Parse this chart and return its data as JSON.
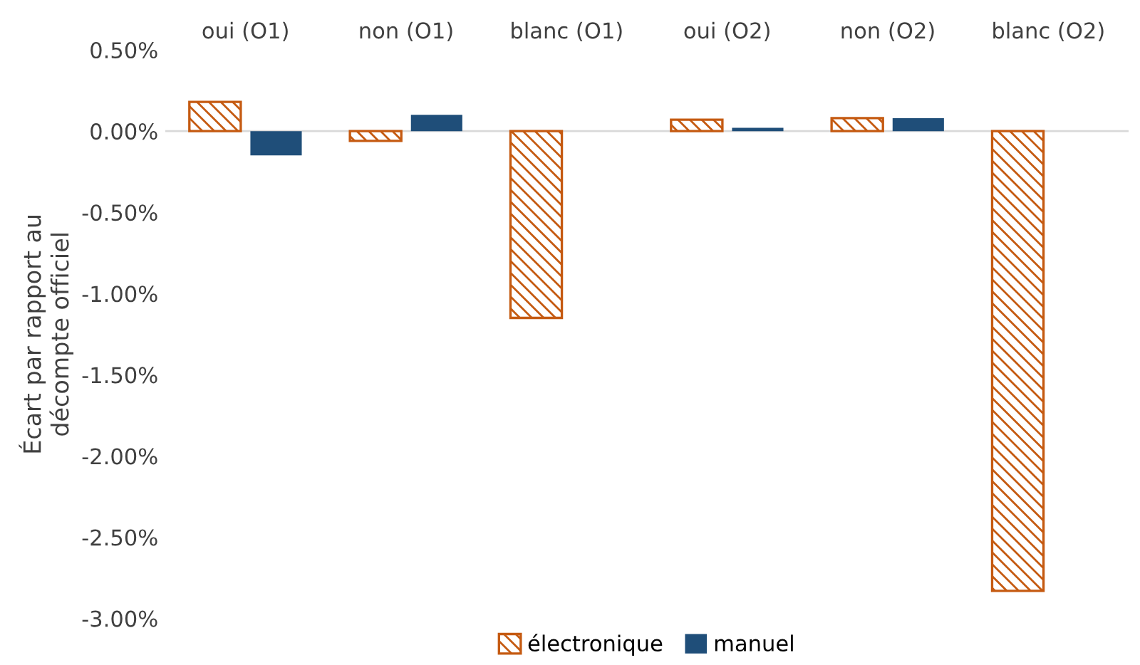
{
  "chart_data": {
    "type": "bar",
    "ylabel": "Écart par rapport au décompte officiel",
    "categories": [
      "oui (O1)",
      "non (O1)",
      "blanc (O1)",
      "oui (O2)",
      "non (O2)",
      "blanc (O2)"
    ],
    "series": [
      {
        "name": "électronique",
        "color": "#c55a11",
        "values": [
          0.18,
          -0.06,
          -1.15,
          0.07,
          0.08,
          -2.83
        ]
      },
      {
        "name": "manuel",
        "color": "#1f4e79",
        "values": [
          -0.15,
          0.1,
          0,
          0.02,
          0.08,
          0
        ]
      }
    ],
    "ylim": [
      -3.0,
      0.5
    ],
    "yticks": [
      {
        "value": 0.5,
        "label": "0.50%"
      },
      {
        "value": 0,
        "label": "0.00%"
      },
      {
        "value": -0.5,
        "label": "-0.50%"
      },
      {
        "value": -1.0,
        "label": "-1.00%"
      },
      {
        "value": -1.5,
        "label": "-1.50%"
      },
      {
        "value": -2.0,
        "label": "-2.00%"
      },
      {
        "value": -2.5,
        "label": "-2.50%"
      },
      {
        "value": -3.0,
        "label": "-3.00%"
      }
    ],
    "ref_lines": [
      {
        "axis": "y",
        "value": 0,
        "color": "#d9d9d9"
      }
    ],
    "legend": "bottom"
  }
}
